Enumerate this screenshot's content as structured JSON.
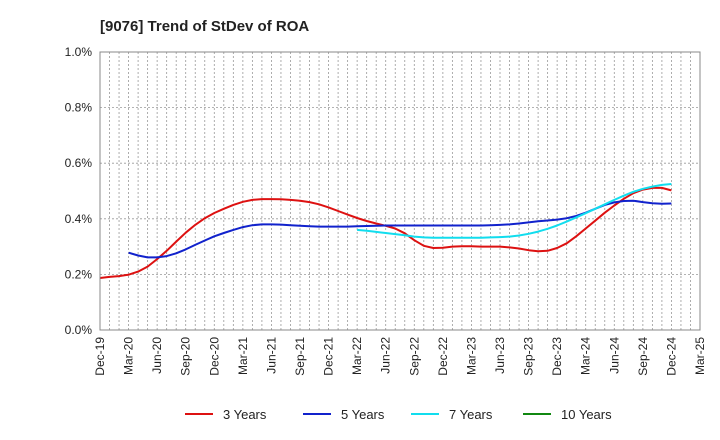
{
  "chart_data": {
    "type": "line",
    "title": "[9076]  Trend of StDev of ROA",
    "xlabel": "",
    "ylabel": "",
    "x_ticks": [
      "Dec-19",
      "Mar-20",
      "Jun-20",
      "Sep-20",
      "Dec-20",
      "Mar-21",
      "Jun-21",
      "Sep-21",
      "Dec-21",
      "Mar-22",
      "Jun-22",
      "Sep-22",
      "Dec-22",
      "Mar-23",
      "Jun-23",
      "Sep-23",
      "Dec-23",
      "Mar-24",
      "Jun-24",
      "Sep-24",
      "Dec-24",
      "Mar-25"
    ],
    "y_ticks": [
      "0.0%",
      "0.2%",
      "0.4%",
      "0.6%",
      "0.8%",
      "1.0%"
    ],
    "ylim": [
      0,
      1.0
    ],
    "y_unit": "%",
    "grid": true,
    "legend_position": "bottom",
    "series": [
      {
        "name": "3 Years",
        "color": "#dd1111",
        "x": [
          "Dec-19",
          "Jan-20",
          "Feb-20",
          "Mar-20",
          "Apr-20",
          "May-20",
          "Jun-20",
          "Jul-20",
          "Aug-20",
          "Sep-20",
          "Oct-20",
          "Nov-20",
          "Dec-20",
          "Jan-21",
          "Feb-21",
          "Mar-21",
          "Apr-21",
          "May-21",
          "Jun-21",
          "Jul-21",
          "Aug-21",
          "Sep-21",
          "Oct-21",
          "Nov-21",
          "Dec-21",
          "Jan-22",
          "Feb-22",
          "Mar-22",
          "Apr-22",
          "May-22",
          "Jun-22",
          "Jul-22",
          "Aug-22",
          "Sep-22",
          "Oct-22",
          "Nov-22",
          "Dec-22",
          "Jan-23",
          "Feb-23",
          "Mar-23",
          "Apr-23",
          "May-23",
          "Jun-23",
          "Jul-23",
          "Aug-23",
          "Sep-23",
          "Oct-23",
          "Nov-23",
          "Dec-23",
          "Jan-24",
          "Feb-24",
          "Mar-24",
          "Apr-24",
          "May-24",
          "Jun-24",
          "Jul-24",
          "Aug-24",
          "Sep-24",
          "Oct-24",
          "Nov-24",
          "Dec-24"
        ],
        "values": [
          0.187,
          0.191,
          0.194,
          0.199,
          0.21,
          0.228,
          0.255,
          0.285,
          0.318,
          0.35,
          0.378,
          0.402,
          0.421,
          0.436,
          0.45,
          0.461,
          0.468,
          0.471,
          0.471,
          0.47,
          0.468,
          0.465,
          0.46,
          0.452,
          0.441,
          0.428,
          0.415,
          0.403,
          0.392,
          0.383,
          0.375,
          0.365,
          0.348,
          0.323,
          0.303,
          0.295,
          0.296,
          0.3,
          0.301,
          0.301,
          0.3,
          0.3,
          0.3,
          0.297,
          0.293,
          0.287,
          0.283,
          0.285,
          0.295,
          0.312,
          0.337,
          0.365,
          0.393,
          0.422,
          0.448,
          0.472,
          0.492,
          0.505,
          0.511,
          0.511,
          0.502
        ]
      },
      {
        "name": "5 Years",
        "color": "#1122cc",
        "x": [
          "Mar-20",
          "Apr-20",
          "May-20",
          "Jun-20",
          "Jul-20",
          "Aug-20",
          "Sep-20",
          "Oct-20",
          "Nov-20",
          "Dec-20",
          "Jan-21",
          "Feb-21",
          "Mar-21",
          "Apr-21",
          "May-21",
          "Jun-21",
          "Jul-21",
          "Aug-21",
          "Sep-21",
          "Oct-21",
          "Nov-21",
          "Dec-21",
          "Jan-22",
          "Feb-22",
          "Mar-22",
          "Apr-22",
          "May-22",
          "Jun-22",
          "Jul-22",
          "Aug-22",
          "Sep-22",
          "Oct-22",
          "Nov-22",
          "Dec-22",
          "Jan-23",
          "Feb-23",
          "Mar-23",
          "Apr-23",
          "May-23",
          "Jun-23",
          "Jul-23",
          "Aug-23",
          "Sep-23",
          "Oct-23",
          "Nov-23",
          "Dec-23",
          "Jan-24",
          "Feb-24",
          "Mar-24",
          "Apr-24",
          "May-24",
          "Jun-24",
          "Jul-24",
          "Aug-24",
          "Sep-24",
          "Oct-24",
          "Nov-24",
          "Dec-24"
        ],
        "values": [
          0.278,
          0.268,
          0.261,
          0.261,
          0.266,
          0.276,
          0.29,
          0.306,
          0.322,
          0.337,
          0.349,
          0.36,
          0.37,
          0.377,
          0.38,
          0.38,
          0.379,
          0.377,
          0.375,
          0.373,
          0.372,
          0.372,
          0.372,
          0.372,
          0.373,
          0.374,
          0.375,
          0.376,
          0.376,
          0.376,
          0.376,
          0.376,
          0.376,
          0.376,
          0.376,
          0.376,
          0.376,
          0.376,
          0.377,
          0.378,
          0.38,
          0.383,
          0.387,
          0.391,
          0.394,
          0.397,
          0.402,
          0.41,
          0.422,
          0.436,
          0.45,
          0.459,
          0.464,
          0.465,
          0.46,
          0.456,
          0.454,
          0.455
        ]
      },
      {
        "name": "7 Years",
        "color": "#11ddee",
        "x": [
          "Mar-22",
          "Apr-22",
          "May-22",
          "Jun-22",
          "Jul-22",
          "Aug-22",
          "Sep-22",
          "Oct-22",
          "Nov-22",
          "Dec-22",
          "Jan-23",
          "Feb-23",
          "Mar-23",
          "Apr-23",
          "May-23",
          "Jun-23",
          "Jul-23",
          "Aug-23",
          "Sep-23",
          "Oct-23",
          "Nov-23",
          "Dec-23",
          "Jan-24",
          "Feb-24",
          "Mar-24",
          "Apr-24",
          "May-24",
          "Jun-24",
          "Jul-24",
          "Aug-24",
          "Sep-24",
          "Oct-24",
          "Nov-24",
          "Dec-24"
        ],
        "values": [
          0.36,
          0.357,
          0.353,
          0.349,
          0.345,
          0.341,
          0.336,
          0.333,
          0.332,
          0.332,
          0.332,
          0.332,
          0.332,
          0.332,
          0.333,
          0.334,
          0.336,
          0.34,
          0.346,
          0.354,
          0.364,
          0.376,
          0.39,
          0.405,
          0.42,
          0.436,
          0.452,
          0.468,
          0.483,
          0.497,
          0.508,
          0.516,
          0.522,
          0.525
        ]
      },
      {
        "name": "10 Years",
        "color": "#118811",
        "x": [],
        "values": []
      }
    ]
  }
}
